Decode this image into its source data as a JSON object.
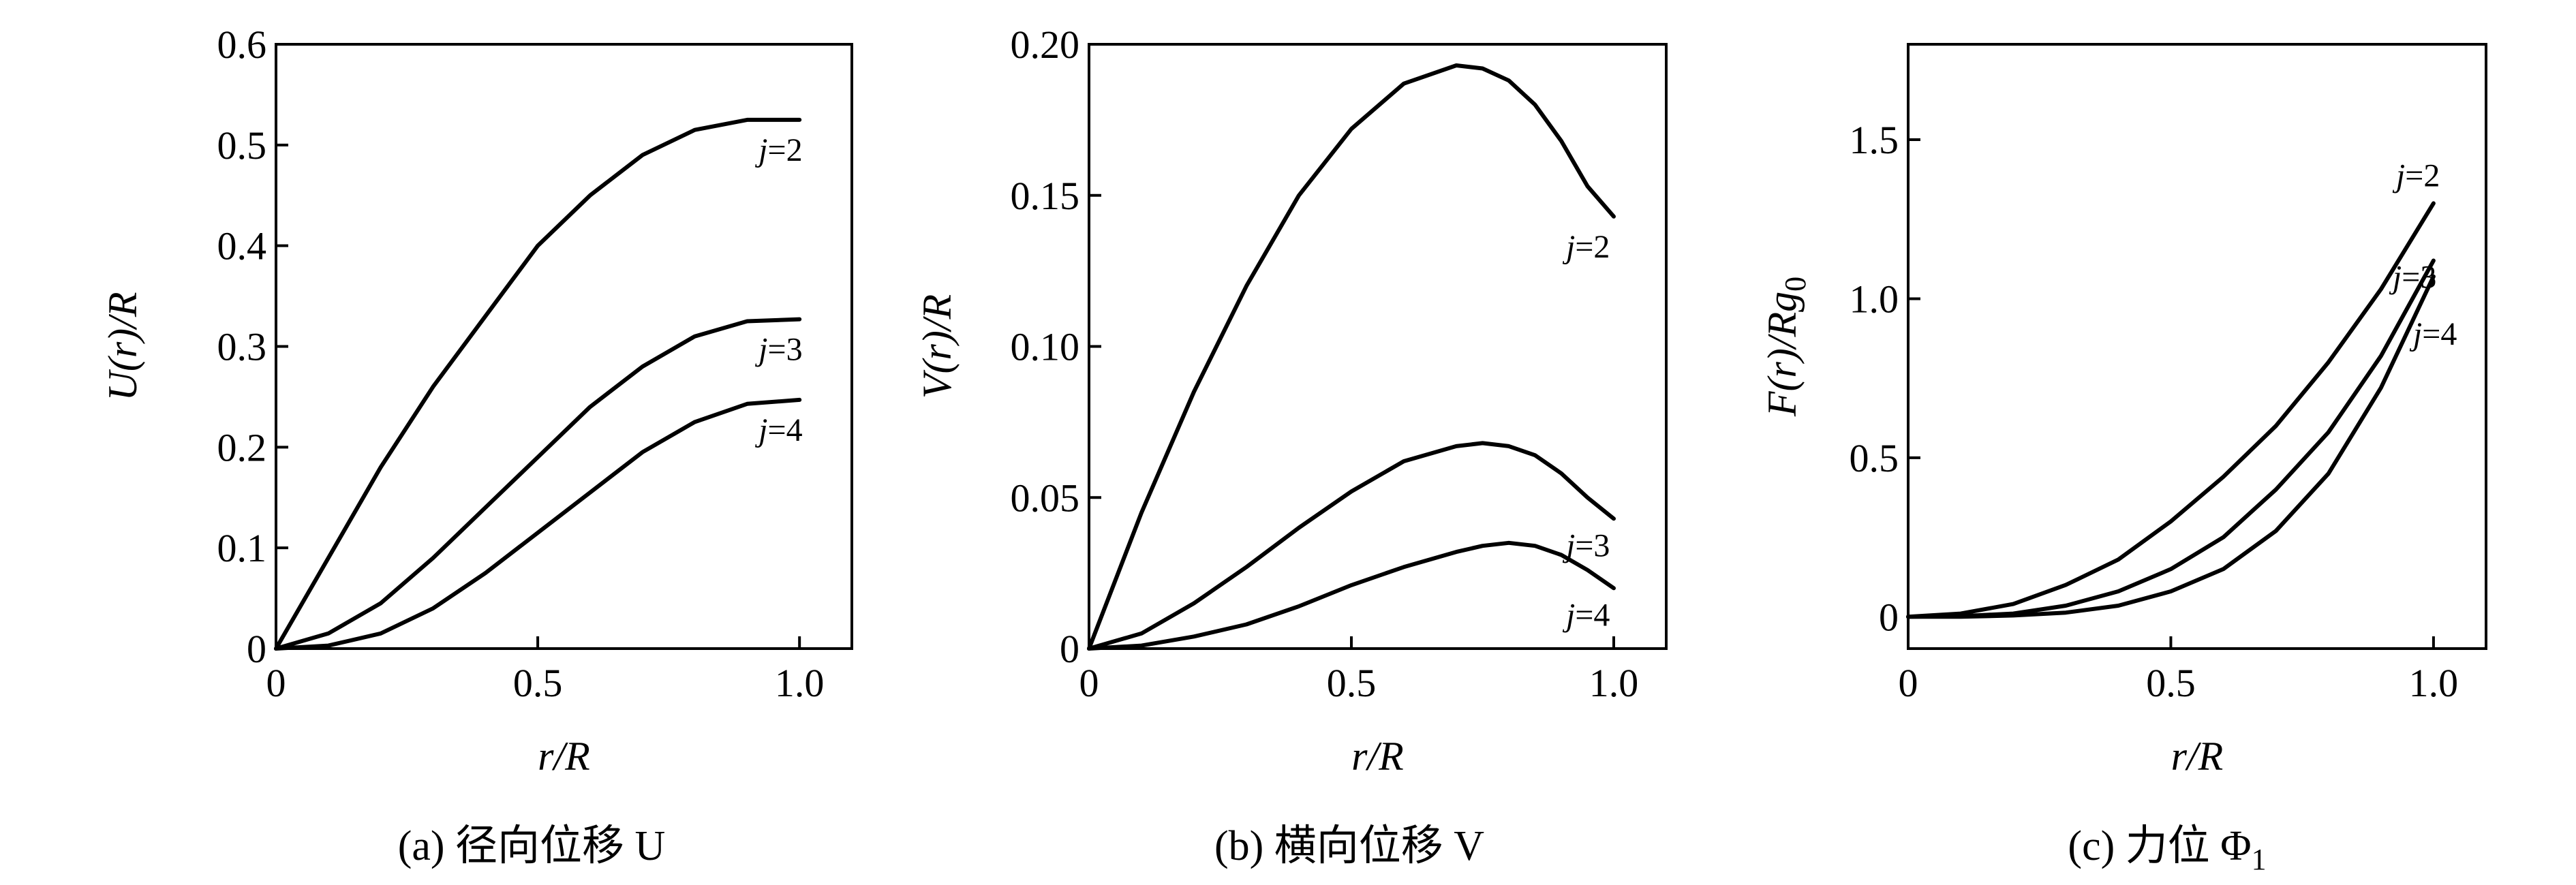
{
  "chart_data": [
    {
      "type": "line",
      "caption": "(a) 径向位移 U",
      "xlabel": "r/R",
      "ylabel": "U(r)/R",
      "xlim": [
        0,
        1.1
      ],
      "ylim": [
        0,
        0.6
      ],
      "xticks": [
        0,
        0.5,
        1.0
      ],
      "xtick_labels": [
        "0",
        "0.5",
        "1.0"
      ],
      "yticks": [
        0,
        0.1,
        0.2,
        0.3,
        0.4,
        0.5,
        0.6
      ],
      "ytick_labels": [
        "0",
        "0.1",
        "0.2",
        "0.3",
        "0.4",
        "0.5",
        "0.6"
      ],
      "x": [
        0,
        0.1,
        0.2,
        0.3,
        0.4,
        0.5,
        0.6,
        0.7,
        0.8,
        0.9,
        1.0
      ],
      "series": [
        {
          "name": "j=2",
          "values": [
            0,
            0.09,
            0.18,
            0.26,
            0.33,
            0.4,
            0.45,
            0.49,
            0.515,
            0.525,
            0.525
          ]
        },
        {
          "name": "j=3",
          "values": [
            0,
            0.015,
            0.045,
            0.09,
            0.14,
            0.19,
            0.24,
            0.28,
            0.31,
            0.325,
            0.327
          ]
        },
        {
          "name": "j=4",
          "values": [
            0,
            0.003,
            0.015,
            0.04,
            0.075,
            0.115,
            0.155,
            0.195,
            0.225,
            0.243,
            0.247
          ]
        }
      ]
    },
    {
      "type": "line",
      "caption": "(b) 横向位移 V",
      "xlabel": "r/R",
      "ylabel": "V(r)/R",
      "xlim": [
        0,
        1.1
      ],
      "ylim": [
        0,
        0.2
      ],
      "xticks": [
        0,
        0.5,
        1.0
      ],
      "xtick_labels": [
        "0",
        "0.5",
        "1.0"
      ],
      "yticks": [
        0,
        0.05,
        0.1,
        0.15,
        0.2
      ],
      "ytick_labels": [
        "0",
        "0.05",
        "0.10",
        "0.15",
        "0.20"
      ],
      "x": [
        0,
        0.1,
        0.2,
        0.3,
        0.4,
        0.5,
        0.6,
        0.7,
        0.75,
        0.8,
        0.85,
        0.9,
        0.95,
        1.0
      ],
      "series": [
        {
          "name": "j=2",
          "values": [
            0,
            0.045,
            0.085,
            0.12,
            0.15,
            0.172,
            0.187,
            0.193,
            0.192,
            0.188,
            0.18,
            0.168,
            0.153,
            0.143
          ]
        },
        {
          "name": "j=3",
          "values": [
            0,
            0.005,
            0.015,
            0.027,
            0.04,
            0.052,
            0.062,
            0.067,
            0.068,
            0.067,
            0.064,
            0.058,
            0.05,
            0.043
          ]
        },
        {
          "name": "j=4",
          "values": [
            0,
            0.001,
            0.004,
            0.008,
            0.014,
            0.021,
            0.027,
            0.032,
            0.034,
            0.035,
            0.034,
            0.031,
            0.026,
            0.02
          ]
        }
      ]
    },
    {
      "type": "line",
      "caption": "(c) 力位 Φ",
      "caption_subscript": "1",
      "xlabel": "r/R",
      "ylabel": "F(r)/Rg",
      "ylabel_subscript": "0",
      "xlim": [
        0,
        1.1
      ],
      "ylim": [
        -0.1,
        1.8
      ],
      "xticks": [
        0,
        0.5,
        1.0
      ],
      "xtick_labels": [
        "0",
        "0.5",
        "1.0"
      ],
      "yticks": [
        0,
        0.5,
        1.0,
        1.5
      ],
      "ytick_labels": [
        "0",
        "0.5",
        "1.0",
        "1.5"
      ],
      "x": [
        0,
        0.1,
        0.2,
        0.3,
        0.4,
        0.5,
        0.6,
        0.7,
        0.8,
        0.9,
        1.0
      ],
      "series": [
        {
          "name": "j=2",
          "values": [
            0,
            0.01,
            0.04,
            0.1,
            0.18,
            0.3,
            0.44,
            0.6,
            0.8,
            1.03,
            1.3
          ]
        },
        {
          "name": "j=3",
          "values": [
            0,
            0.002,
            0.01,
            0.035,
            0.08,
            0.15,
            0.25,
            0.4,
            0.58,
            0.82,
            1.12
          ]
        },
        {
          "name": "j=4",
          "values": [
            0,
            0.0,
            0.004,
            0.013,
            0.035,
            0.08,
            0.15,
            0.27,
            0.45,
            0.72,
            1.07
          ]
        }
      ]
    }
  ]
}
